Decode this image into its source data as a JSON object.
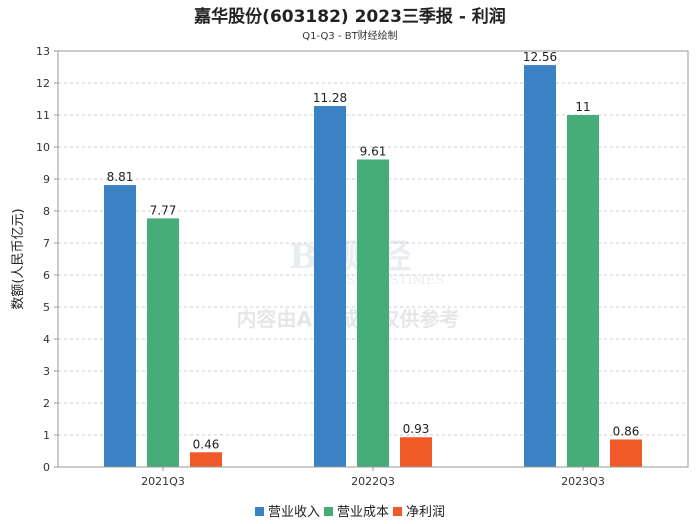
{
  "chart_data": {
    "type": "bar",
    "title": "嘉华股份(603182) 2023三季报 - 利润",
    "subtitle": "Q1-Q3 - BT财经绘制",
    "xlabel": "",
    "ylabel": "数额(人民币亿元)",
    "ylim": [
      0,
      13
    ],
    "yticks": [
      0,
      1,
      2,
      3,
      4,
      5,
      6,
      7,
      8,
      9,
      10,
      11,
      12,
      13
    ],
    "grid": true,
    "legend_position": "bottom",
    "categories": [
      "2021Q3",
      "2022Q3",
      "2023Q3"
    ],
    "series": [
      {
        "name": "营业收入",
        "color": "#3b82c4",
        "values": [
          8.81,
          11.28,
          12.56
        ],
        "labels": [
          "8.81",
          "11.28",
          "12.56"
        ]
      },
      {
        "name": "营业成本",
        "color": "#46ad7a",
        "values": [
          7.77,
          9.61,
          11
        ],
        "labels": [
          "7.77",
          "9.61",
          "11"
        ]
      },
      {
        "name": "净利润",
        "color": "#f05a28",
        "values": [
          0.46,
          0.93,
          0.86
        ],
        "labels": [
          "0.46",
          "0.93",
          "0.86"
        ]
      }
    ]
  },
  "watermark": {
    "brand": "BT财经",
    "brand_en": "BUSINESSTIMES",
    "notice": "内容由AI生成，仅供参考"
  }
}
